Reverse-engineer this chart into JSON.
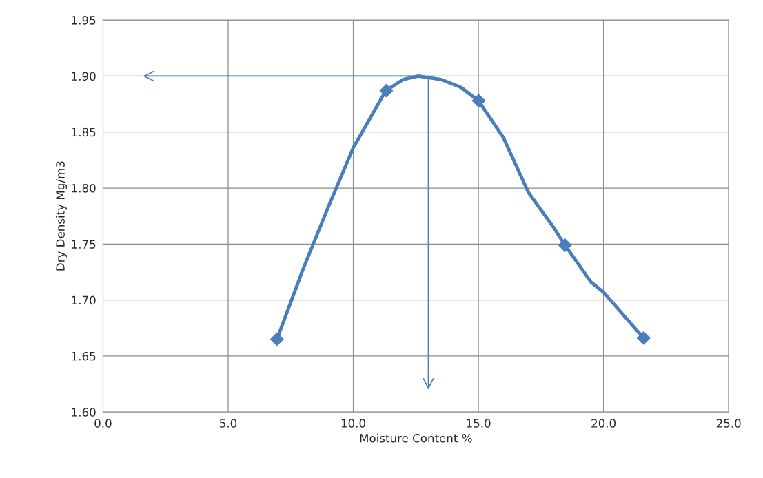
{
  "chart_data": {
    "type": "scatter",
    "xlabel": "Moisture Content %",
    "ylabel": "Dry Density Mg/m3",
    "xlim": [
      0,
      25
    ],
    "ylim": [
      1.6,
      1.95
    ],
    "xticks": [
      {
        "value": 0,
        "label": "0.0"
      },
      {
        "value": 5,
        "label": "5.0"
      },
      {
        "value": 10,
        "label": "10.0"
      },
      {
        "value": 15,
        "label": "15.0"
      },
      {
        "value": 20,
        "label": "20.0"
      },
      {
        "value": 25,
        "label": "25.0"
      }
    ],
    "yticks": [
      {
        "value": 1.6,
        "label": "1.60"
      },
      {
        "value": 1.65,
        "label": "1.65"
      },
      {
        "value": 1.7,
        "label": "1.70"
      },
      {
        "value": 1.75,
        "label": "1.75"
      },
      {
        "value": 1.8,
        "label": "1.80"
      },
      {
        "value": 1.85,
        "label": "1.85"
      },
      {
        "value": 1.9,
        "label": "1.90"
      },
      {
        "value": 1.95,
        "label": "1.95"
      }
    ],
    "grid": true,
    "series": [
      {
        "type": "line",
        "marker": "none",
        "color": "#4a7ebb",
        "x": [
          6.95,
          8.0,
          9.0,
          10.0,
          11.3,
          12.0,
          12.6,
          13.5,
          14.3,
          15.0,
          16.0,
          17.0,
          18.0,
          18.46,
          19.5,
          20.0,
          21.6
        ],
        "values": [
          1.665,
          1.728,
          1.783,
          1.836,
          1.887,
          1.897,
          1.9,
          1.897,
          1.89,
          1.878,
          1.845,
          1.796,
          1.765,
          1.749,
          1.716,
          1.707,
          1.666
        ]
      },
      {
        "marker": "diamond",
        "color": "#4a7ebb",
        "x": [
          6.95,
          11.32,
          15.01,
          18.46,
          21.6
        ],
        "values": [
          1.665,
          1.887,
          1.878,
          1.749,
          1.666
        ]
      },
      {
        "type": "line",
        "marker": "none",
        "color": "#4a7ebb",
        "x": [
          12.6,
          1.6
        ],
        "values": [
          1.9,
          1.9
        ]
      },
      {
        "type": "line",
        "marker": "none",
        "color": "#4a7ebb",
        "x": [
          13.0,
          13.0
        ],
        "values": [
          1.9,
          1.62
        ]
      }
    ]
  }
}
